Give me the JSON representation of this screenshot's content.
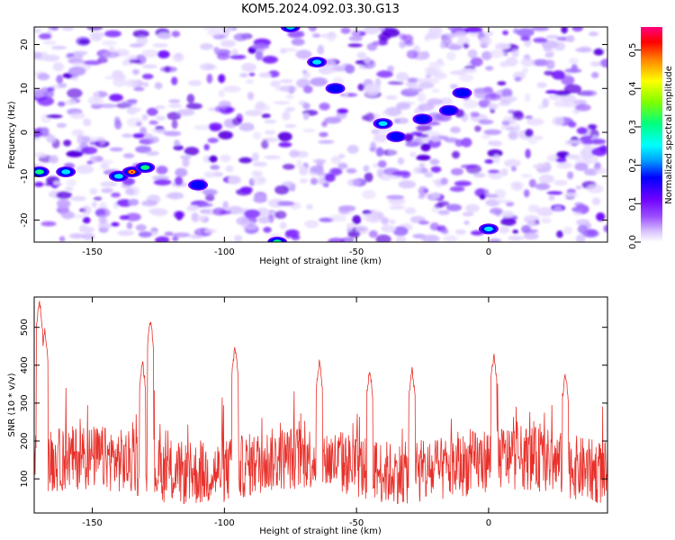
{
  "title": "KOM5.2024.092.03.30.G13",
  "chart_data": [
    {
      "type": "heatmap",
      "xlabel": "Height of straight line (km)",
      "ylabel": "Frequency (Hz)",
      "xlim": [
        -172,
        45
      ],
      "ylim": [
        -25,
        24
      ],
      "xticks": [
        -150,
        -100,
        -50,
        0
      ],
      "yticks": [
        -20,
        -10,
        0,
        10,
        20
      ],
      "colorbar": {
        "label": "Normalized spectral amplitude",
        "range": [
          0,
          0.56
        ],
        "ticks": [
          0.0,
          0.1,
          0.2,
          0.3,
          0.4,
          0.5
        ],
        "colormap": [
          "#ffffff",
          "#c8a2ff",
          "#6f00ff",
          "#0000ff",
          "#00e5ff",
          "#00ff7f",
          "#7fff00",
          "#ffff00",
          "#ff8000",
          "#ff0000",
          "#ff007f"
        ]
      },
      "hotspots": [
        {
          "x": -170,
          "y": -9,
          "value": 0.2
        },
        {
          "x": -160,
          "y": -9,
          "value": 0.18
        },
        {
          "x": -140,
          "y": -10,
          "value": 0.15
        },
        {
          "x": -135,
          "y": -9,
          "value": 0.55
        },
        {
          "x": -130,
          "y": -8,
          "value": 0.2
        },
        {
          "x": -110,
          "y": -12,
          "value": 0.14
        },
        {
          "x": -80,
          "y": -25,
          "value": 0.2
        },
        {
          "x": -75,
          "y": 24,
          "value": 0.15
        },
        {
          "x": -65,
          "y": 16,
          "value": 0.15
        },
        {
          "x": -58,
          "y": 10,
          "value": 0.12
        },
        {
          "x": -40,
          "y": 2,
          "value": 0.18
        },
        {
          "x": -35,
          "y": -1,
          "value": 0.1
        },
        {
          "x": -25,
          "y": 3,
          "value": 0.1
        },
        {
          "x": -15,
          "y": 5,
          "value": 0.13
        },
        {
          "x": -10,
          "y": 9,
          "value": 0.13
        },
        {
          "x": 0,
          "y": -22,
          "value": 0.17
        }
      ]
    },
    {
      "type": "line",
      "xlabel": "Height of straight line (km)",
      "ylabel": "SNR (10 * v/v)",
      "xlim": [
        -172,
        45
      ],
      "ylim": [
        10,
        580
      ],
      "xticks": [
        -150,
        -100,
        -50,
        0
      ],
      "yticks": [
        100,
        200,
        300,
        400,
        500
      ],
      "color": "#e8302a",
      "peaks": [
        {
          "x": -170,
          "y": 580
        },
        {
          "x": -168,
          "y": 500
        },
        {
          "x": -131,
          "y": 420
        },
        {
          "x": -128,
          "y": 530
        },
        {
          "x": -96,
          "y": 460
        },
        {
          "x": -64,
          "y": 420
        },
        {
          "x": -45,
          "y": 400
        },
        {
          "x": -29,
          "y": 400
        },
        {
          "x": 2,
          "y": 440
        },
        {
          "x": 29,
          "y": 390
        }
      ]
    }
  ]
}
